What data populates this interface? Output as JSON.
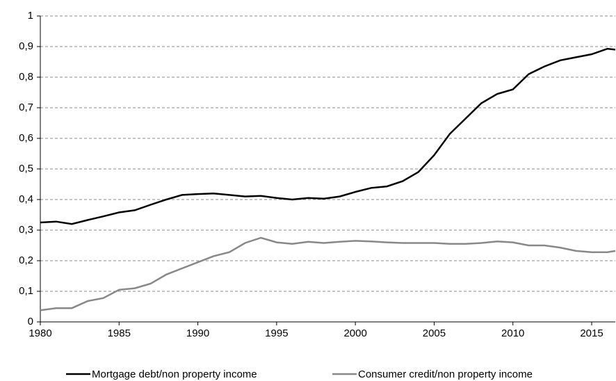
{
  "chart_data": {
    "type": "line",
    "x": [
      1980,
      1981,
      1982,
      1983,
      1984,
      1985,
      1986,
      1987,
      1988,
      1989,
      1990,
      1991,
      1992,
      1993,
      1994,
      1995,
      1996,
      1997,
      1998,
      1999,
      2000,
      2001,
      2002,
      2003,
      2004,
      2005,
      2006,
      2007,
      2008,
      2009,
      2010,
      2011,
      2012,
      2013,
      2014,
      2015,
      2016,
      2016.5
    ],
    "series": [
      {
        "name": "Mortgage debt/non property income",
        "color": "#000000",
        "values": [
          0.325,
          0.328,
          0.32,
          0.333,
          0.345,
          0.358,
          0.365,
          0.383,
          0.4,
          0.415,
          0.418,
          0.42,
          0.415,
          0.41,
          0.412,
          0.405,
          0.4,
          0.405,
          0.403,
          0.41,
          0.425,
          0.438,
          0.443,
          0.46,
          0.49,
          0.545,
          0.615,
          0.665,
          0.715,
          0.745,
          0.76,
          0.81,
          0.835,
          0.855,
          0.865,
          0.875,
          0.893,
          0.89
        ]
      },
      {
        "name": "Consumer credit/non property income",
        "color": "#888888",
        "values": [
          0.038,
          0.045,
          0.045,
          0.068,
          0.078,
          0.105,
          0.11,
          0.125,
          0.155,
          0.175,
          0.195,
          0.215,
          0.228,
          0.258,
          0.275,
          0.26,
          0.255,
          0.262,
          0.258,
          0.262,
          0.265,
          0.263,
          0.26,
          0.258,
          0.258,
          0.258,
          0.255,
          0.255,
          0.258,
          0.263,
          0.26,
          0.25,
          0.25,
          0.243,
          0.232,
          0.228,
          0.228,
          0.232
        ]
      }
    ],
    "xlim": [
      1980,
      2016.5
    ],
    "xticks": [
      1980,
      1985,
      1990,
      1995,
      2000,
      2005,
      2010,
      2015
    ],
    "ylim": [
      0,
      1
    ],
    "yticks": [
      0,
      {
        "value": 0.1,
        "label": "0,1"
      },
      {
        "value": 0.2,
        "label": "0,2"
      },
      {
        "value": 0.3,
        "label": "0,3"
      },
      {
        "value": 0.4,
        "label": "0,4"
      },
      {
        "value": 0.5,
        "label": "0,5"
      },
      {
        "value": 0.6,
        "label": "0,6"
      },
      {
        "value": 0.7,
        "label": "0,7"
      },
      {
        "value": 0.8,
        "label": "0,8"
      },
      {
        "value": 0.9,
        "label": "0,9"
      },
      1
    ],
    "grid": true
  }
}
